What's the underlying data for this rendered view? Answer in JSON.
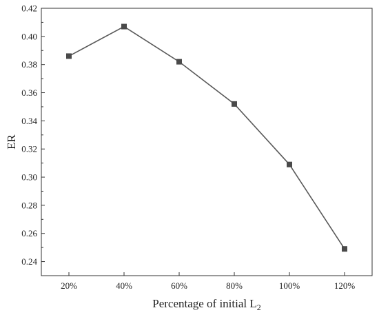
{
  "chart_data": {
    "type": "line",
    "title": "",
    "xlabel_main": "Percentage of initial L",
    "xlabel_sub": "2",
    "ylabel": "ER",
    "categories": [
      "20%",
      "40%",
      "60%",
      "80%",
      "100%",
      "120%"
    ],
    "series": [
      {
        "values": [
          0.386,
          0.407,
          0.382,
          0.352,
          0.309,
          0.249
        ]
      }
    ],
    "ylim": [
      0.23,
      0.42
    ],
    "yticks": [
      "0.24",
      "0.26",
      "0.28",
      "0.30",
      "0.32",
      "0.34",
      "0.36",
      "0.38",
      "0.40",
      "0.42"
    ],
    "grid": false,
    "marker": "square",
    "colors": {
      "line": "#595959",
      "marker": "#4a4a4a"
    }
  }
}
